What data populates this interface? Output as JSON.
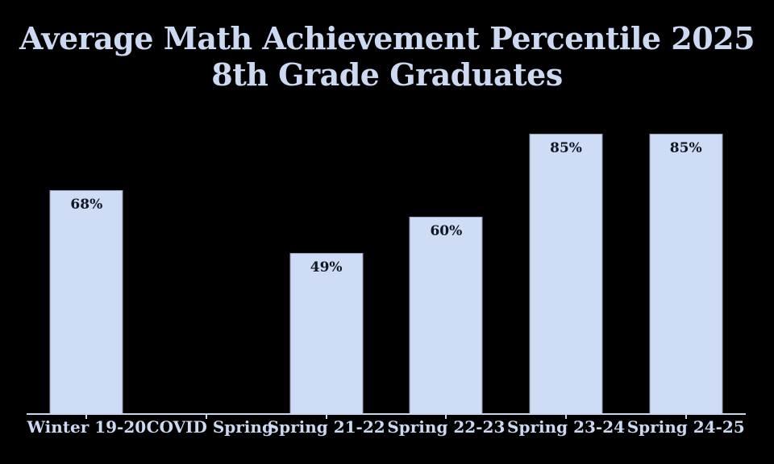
{
  "chart_data": {
    "type": "bar",
    "title": "Average Math Achievement Percentile 2025 8th Grade Graduates",
    "title_lines": [
      "Average Math Achievement Percentile 2025",
      "8th Grade Graduates"
    ],
    "categories": [
      "Winter 19-20",
      "COVID Spring",
      "Spring 21-22",
      "Spring 22-23",
      "Spring 23-24",
      "Spring 24-25"
    ],
    "values": [
      68,
      null,
      49,
      60,
      85,
      85
    ],
    "value_labels": [
      "68%",
      null,
      "49%",
      "60%",
      "85%",
      "85%"
    ],
    "xlabel": "",
    "ylabel": "",
    "ylim": [
      0,
      100
    ],
    "grid": false,
    "legend": null,
    "colors": {
      "background": "#000000",
      "bar_fill": "#cfdcf5",
      "bar_border": "#8e99b0",
      "title_text": "#ccd9f2",
      "category_text": "#ccd9f2",
      "value_label_text": "#101623",
      "axis_line": "#c9d6ef"
    }
  }
}
